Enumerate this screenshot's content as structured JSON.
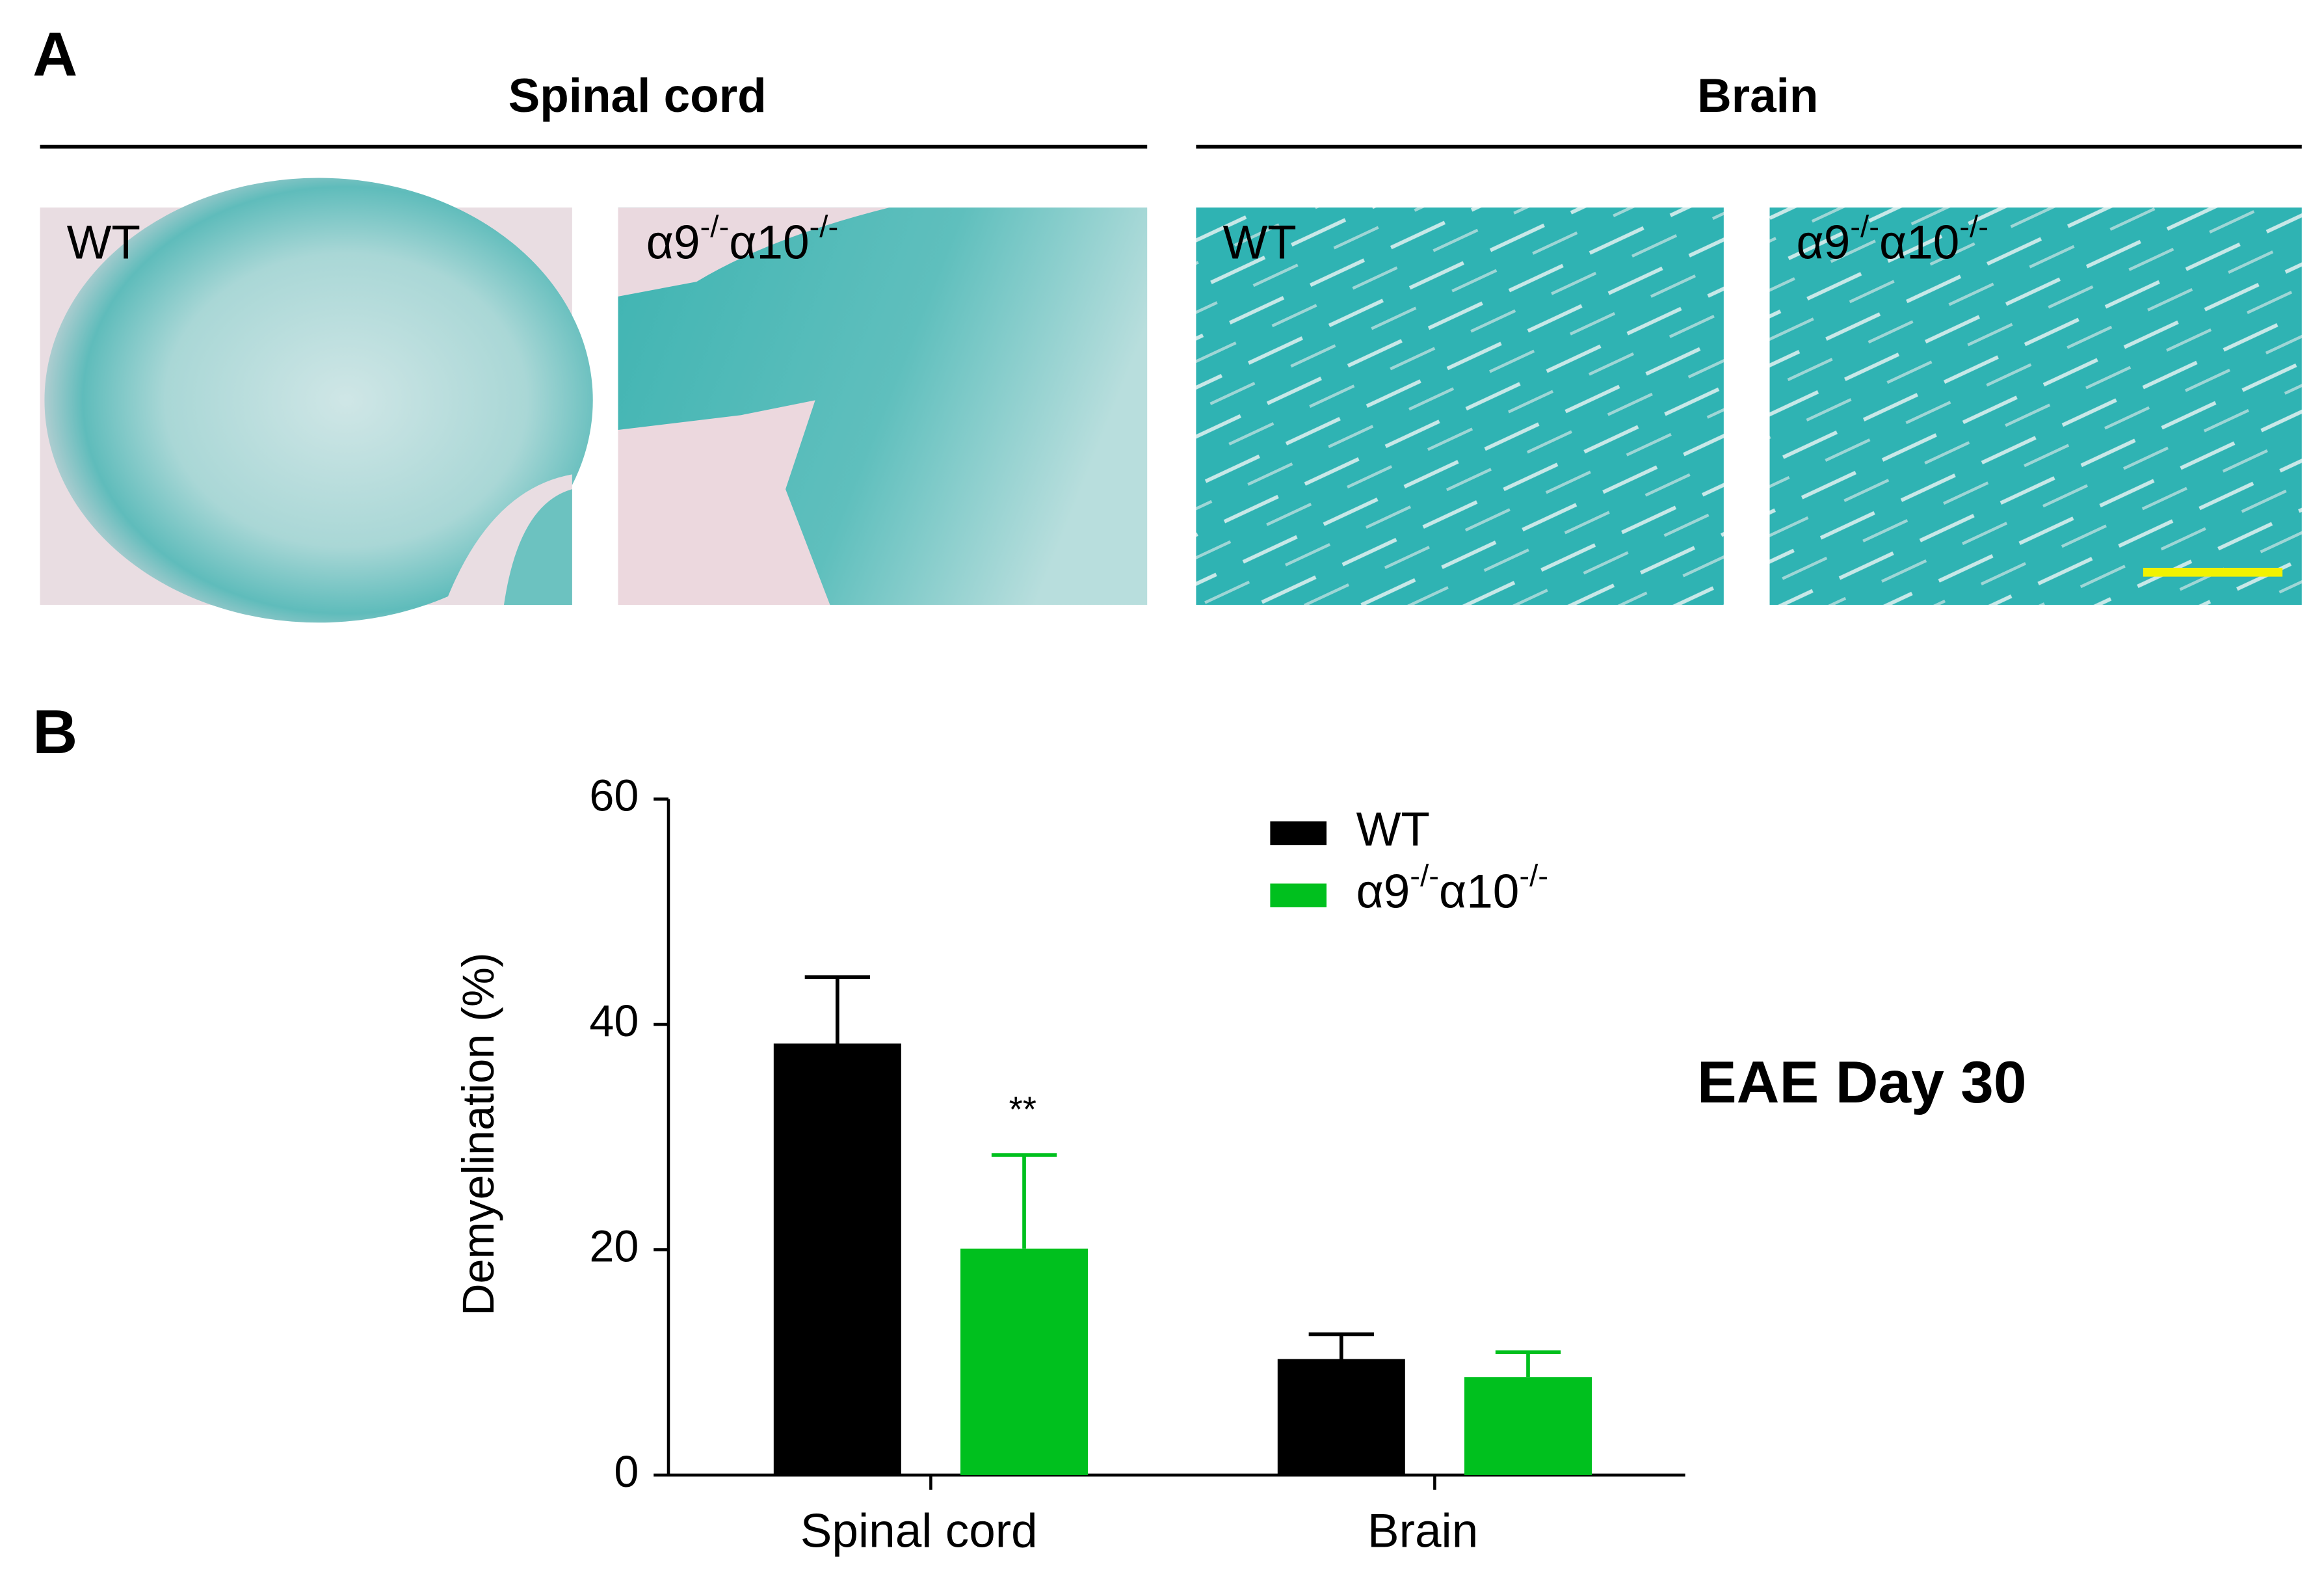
{
  "panel_a": {
    "label": "A",
    "groups": [
      {
        "title": "Spinal cord",
        "images": [
          {
            "label": "WT"
          },
          {
            "label": "α9-/-α10-/-"
          }
        ]
      },
      {
        "title": "Brain",
        "images": [
          {
            "label": "WT"
          },
          {
            "label": "α9-/-α10-/-"
          }
        ]
      }
    ]
  },
  "panel_b": {
    "label": "B"
  },
  "chart_data": {
    "type": "bar",
    "categories": [
      "Spinal cord",
      "Brain"
    ],
    "series": [
      {
        "name": "WT",
        "color": "#000000",
        "values": [
          38.3,
          10.3
        ],
        "errors": [
          5.9,
          2.2
        ]
      },
      {
        "name": "α9-/-α10-/-",
        "color": "#00c01e",
        "values": [
          20.1,
          8.7
        ],
        "errors": [
          8.3,
          2.2
        ]
      }
    ],
    "ylabel": "Demyelination (%)",
    "ylim": [
      0,
      60
    ],
    "yticks": [
      0,
      20,
      40,
      60
    ],
    "annotations": [
      "**",
      "EAE Day 30"
    ],
    "legend": "top-right",
    "grid": false
  }
}
